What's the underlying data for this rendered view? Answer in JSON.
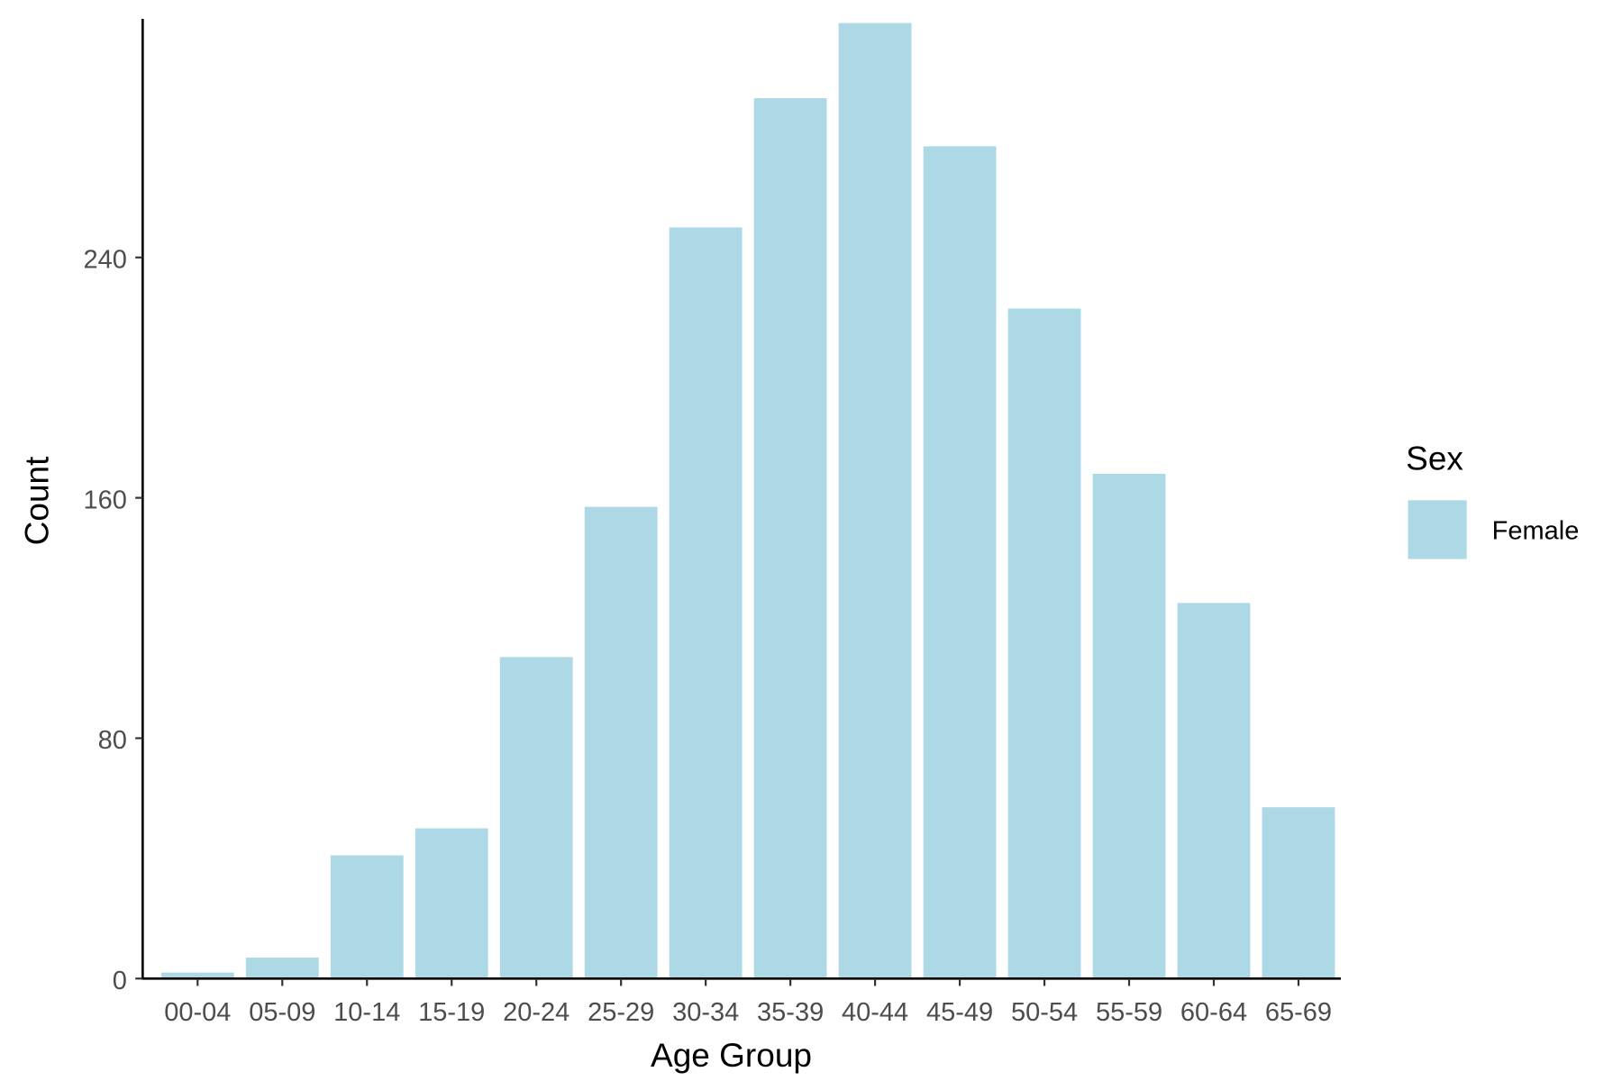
{
  "chart_data": {
    "type": "bar",
    "title": "",
    "xlabel": "Age Group",
    "ylabel": "Count",
    "categories": [
      "00-04",
      "05-09",
      "10-14",
      "15-19",
      "20-24",
      "25-29",
      "30-34",
      "35-39",
      "40-44",
      "45-49",
      "50-54",
      "55-59",
      "60-64",
      "65-69"
    ],
    "values": [
      2,
      7,
      41,
      50,
      107,
      157,
      250,
      293,
      318,
      277,
      223,
      168,
      125,
      57
    ],
    "ylim": [
      0,
      318
    ],
    "yticks": [
      0,
      80,
      160,
      240
    ],
    "ytick_labels": [
      "0",
      "80",
      "160",
      "240"
    ],
    "grid": false,
    "legend": {
      "title": "Sex",
      "position": "right",
      "entries": [
        {
          "label": "Female",
          "color": "#add8e6"
        }
      ]
    },
    "bar_color": "#add8e6",
    "axis_color": "#000000",
    "tick_label_color": "#4d4d4d"
  }
}
